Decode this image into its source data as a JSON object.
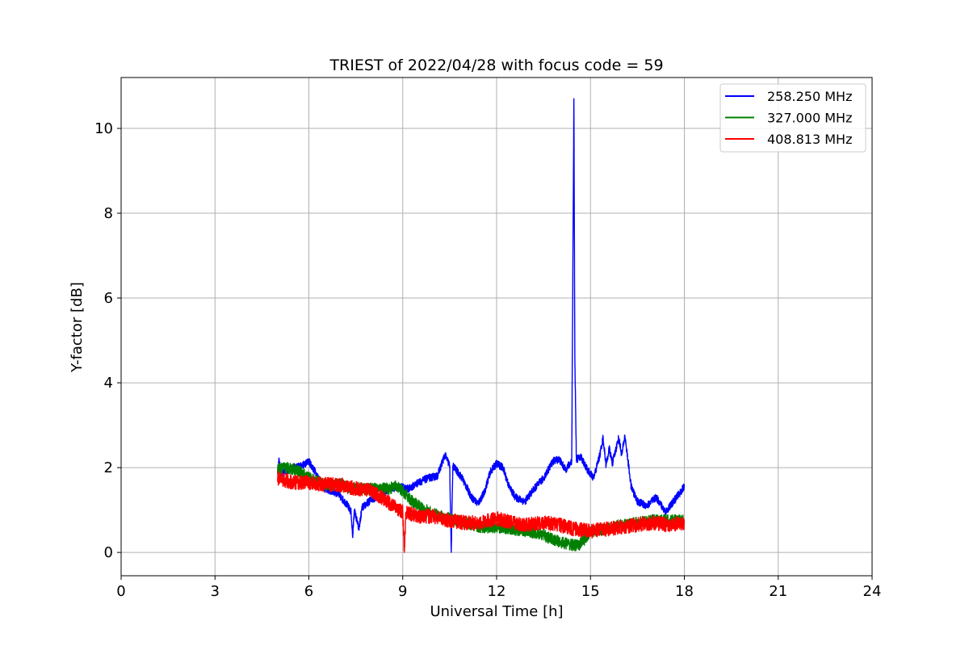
{
  "chart_data": {
    "type": "line",
    "title": "TRIEST of 2022/04/28 with focus code = 59",
    "xlabel": "Universal Time [h]",
    "ylabel": "Y-factor [dB]",
    "xlim": [
      0,
      24
    ],
    "ylim": [
      -0.55,
      11.2
    ],
    "xticks": [
      0,
      3,
      6,
      9,
      12,
      15,
      18,
      21,
      24
    ],
    "yticks": [
      0,
      2,
      4,
      6,
      8,
      10
    ],
    "grid": true,
    "legend_position": "top-right",
    "series": [
      {
        "name": "258.250 MHz",
        "color": "#0000ff",
        "noise": 0.09,
        "points": [
          [
            5.0,
            1.9
          ],
          [
            5.05,
            2.2
          ],
          [
            5.1,
            1.85
          ],
          [
            5.5,
            2.0
          ],
          [
            5.8,
            2.05
          ],
          [
            6.0,
            2.15
          ],
          [
            6.2,
            1.9
          ],
          [
            6.5,
            1.5
          ],
          [
            6.9,
            1.4
          ],
          [
            7.2,
            1.15
          ],
          [
            7.35,
            0.95
          ],
          [
            7.4,
            0.35
          ],
          [
            7.45,
            1.0
          ],
          [
            7.6,
            0.55
          ],
          [
            7.7,
            1.05
          ],
          [
            8.0,
            1.25
          ],
          [
            8.3,
            1.35
          ],
          [
            8.6,
            1.5
          ],
          [
            8.9,
            1.55
          ],
          [
            9.2,
            1.5
          ],
          [
            9.5,
            1.65
          ],
          [
            9.8,
            1.75
          ],
          [
            10.1,
            1.8
          ],
          [
            10.35,
            2.3
          ],
          [
            10.5,
            2.05
          ],
          [
            10.55,
            0.0
          ],
          [
            10.6,
            2.05
          ],
          [
            10.9,
            1.75
          ],
          [
            11.2,
            1.3
          ],
          [
            11.4,
            1.15
          ],
          [
            11.6,
            1.4
          ],
          [
            11.8,
            1.9
          ],
          [
            12.0,
            2.1
          ],
          [
            12.2,
            2.0
          ],
          [
            12.4,
            1.55
          ],
          [
            12.6,
            1.3
          ],
          [
            12.9,
            1.2
          ],
          [
            13.2,
            1.5
          ],
          [
            13.5,
            1.75
          ],
          [
            13.8,
            2.15
          ],
          [
            14.0,
            2.2
          ],
          [
            14.2,
            1.95
          ],
          [
            14.4,
            2.15
          ],
          [
            14.47,
            10.7
          ],
          [
            14.5,
            4.55
          ],
          [
            14.55,
            2.2
          ],
          [
            14.7,
            2.25
          ],
          [
            14.9,
            1.95
          ],
          [
            15.1,
            1.75
          ],
          [
            15.3,
            2.3
          ],
          [
            15.4,
            2.7
          ],
          [
            15.5,
            2.05
          ],
          [
            15.6,
            2.45
          ],
          [
            15.7,
            2.1
          ],
          [
            15.9,
            2.7
          ],
          [
            16.0,
            2.3
          ],
          [
            16.1,
            2.75
          ],
          [
            16.3,
            1.55
          ],
          [
            16.5,
            1.2
          ],
          [
            16.8,
            1.1
          ],
          [
            17.1,
            1.3
          ],
          [
            17.4,
            0.95
          ],
          [
            17.7,
            1.25
          ],
          [
            18.0,
            1.55
          ]
        ]
      },
      {
        "name": "327.000 MHz",
        "color": "#008000",
        "noise": 0.14,
        "points": [
          [
            5.0,
            1.95
          ],
          [
            5.3,
            2.0
          ],
          [
            5.6,
            1.95
          ],
          [
            6.0,
            1.75
          ],
          [
            6.5,
            1.6
          ],
          [
            7.0,
            1.6
          ],
          [
            7.5,
            1.5
          ],
          [
            8.0,
            1.5
          ],
          [
            8.5,
            1.5
          ],
          [
            8.8,
            1.55
          ],
          [
            9.0,
            1.45
          ],
          [
            9.3,
            1.2
          ],
          [
            9.6,
            1.05
          ],
          [
            10.0,
            0.9
          ],
          [
            10.5,
            0.8
          ],
          [
            11.0,
            0.7
          ],
          [
            11.5,
            0.6
          ],
          [
            12.0,
            0.6
          ],
          [
            12.5,
            0.55
          ],
          [
            13.0,
            0.5
          ],
          [
            13.5,
            0.4
          ],
          [
            14.0,
            0.25
          ],
          [
            14.3,
            0.2
          ],
          [
            14.6,
            0.15
          ],
          [
            14.8,
            0.3
          ],
          [
            15.0,
            0.5
          ],
          [
            15.5,
            0.55
          ],
          [
            16.0,
            0.65
          ],
          [
            16.5,
            0.7
          ],
          [
            17.0,
            0.75
          ],
          [
            17.5,
            0.75
          ],
          [
            18.0,
            0.75
          ]
        ]
      },
      {
        "name": "408.813 MHz",
        "color": "#ff0000",
        "noise": 0.17,
        "points": [
          [
            5.0,
            1.75
          ],
          [
            5.5,
            1.65
          ],
          [
            6.0,
            1.65
          ],
          [
            6.5,
            1.6
          ],
          [
            7.0,
            1.6
          ],
          [
            7.5,
            1.5
          ],
          [
            8.0,
            1.45
          ],
          [
            8.5,
            1.2
          ],
          [
            9.0,
            0.95
          ],
          [
            9.05,
            0.0
          ],
          [
            9.1,
            0.95
          ],
          [
            9.5,
            0.85
          ],
          [
            10.0,
            0.85
          ],
          [
            10.5,
            0.75
          ],
          [
            11.0,
            0.7
          ],
          [
            11.5,
            0.7
          ],
          [
            12.0,
            0.8
          ],
          [
            12.5,
            0.7
          ],
          [
            13.0,
            0.65
          ],
          [
            13.5,
            0.7
          ],
          [
            14.0,
            0.65
          ],
          [
            14.5,
            0.55
          ],
          [
            15.0,
            0.5
          ],
          [
            15.5,
            0.55
          ],
          [
            16.0,
            0.6
          ],
          [
            16.5,
            0.65
          ],
          [
            17.0,
            0.7
          ],
          [
            17.5,
            0.65
          ],
          [
            18.0,
            0.7
          ]
        ]
      }
    ]
  }
}
